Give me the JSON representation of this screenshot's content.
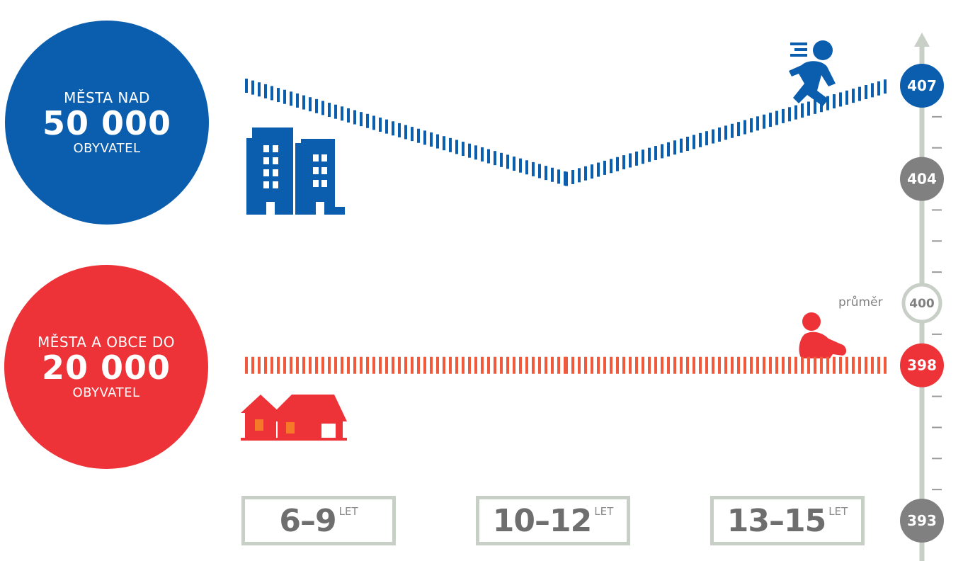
{
  "colors": {
    "blue": "#0b5ead",
    "red": "#ee3338",
    "orange": "#f05a3c",
    "gray": "#808080",
    "axis": "#c8cfc6"
  },
  "groups": {
    "big_cities": {
      "line1": "MĚSTA NAD",
      "number": "50 000",
      "line3": "OBYVATEL",
      "icon": "buildings-icon"
    },
    "small_towns": {
      "line1": "MĚSTA A OBCE DO",
      "number": "20 000",
      "line3": "OBYVATEL",
      "icon": "houses-icon"
    }
  },
  "ages": [
    {
      "range": "6–9",
      "unit": "LET"
    },
    {
      "range": "10–12",
      "unit": "LET"
    },
    {
      "range": "13–15",
      "unit": "LET"
    }
  ],
  "chart_data": {
    "type": "line",
    "categories": [
      "6–9",
      "10–12",
      "13–15"
    ],
    "ylim": [
      393,
      408
    ],
    "series": [
      {
        "name": "MĚSTA NAD 50 000 OBYVATEL",
        "color": "#0b5ead",
        "values": [
          407,
          404,
          407
        ]
      },
      {
        "name": "MĚSTA A OBCE DO 20 000 OBYVATEL",
        "color": "#f05a3c",
        "values": [
          398,
          398,
          398
        ]
      }
    ],
    "axis_markers": [
      {
        "value": "407",
        "style": "blue"
      },
      {
        "value": "404",
        "style": "gray"
      },
      {
        "value": "400",
        "style": "outline",
        "label": "průměr"
      },
      {
        "value": "398",
        "style": "red"
      },
      {
        "value": "393",
        "style": "gray"
      }
    ],
    "icons": [
      "running-child-icon",
      "crawling-baby-icon"
    ]
  }
}
